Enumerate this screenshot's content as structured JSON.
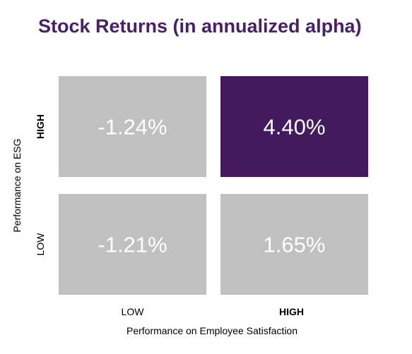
{
  "chart_data": {
    "type": "heatmap",
    "title": "Stock Returns (in annualized alpha)",
    "xlabel": "Performance on Employee Satisfaction",
    "ylabel": "Performance on ESG",
    "x_categories": [
      "LOW",
      "HIGH"
    ],
    "y_categories": [
      "HIGH",
      "LOW"
    ],
    "values": [
      [
        -1.24,
        4.4
      ],
      [
        -1.21,
        1.65
      ]
    ],
    "value_labels": [
      [
        "-1.24%",
        "4.40%"
      ],
      [
        "-1.21%",
        "1.65%"
      ]
    ],
    "highlight": {
      "row": 0,
      "col": 1
    },
    "colors": {
      "default_cell": "#c0c0c0",
      "highlight_cell": "#441a5e",
      "title": "#4a1f69",
      "cell_text": "#ffffff"
    },
    "bold_ticks": [
      "HIGH"
    ]
  }
}
